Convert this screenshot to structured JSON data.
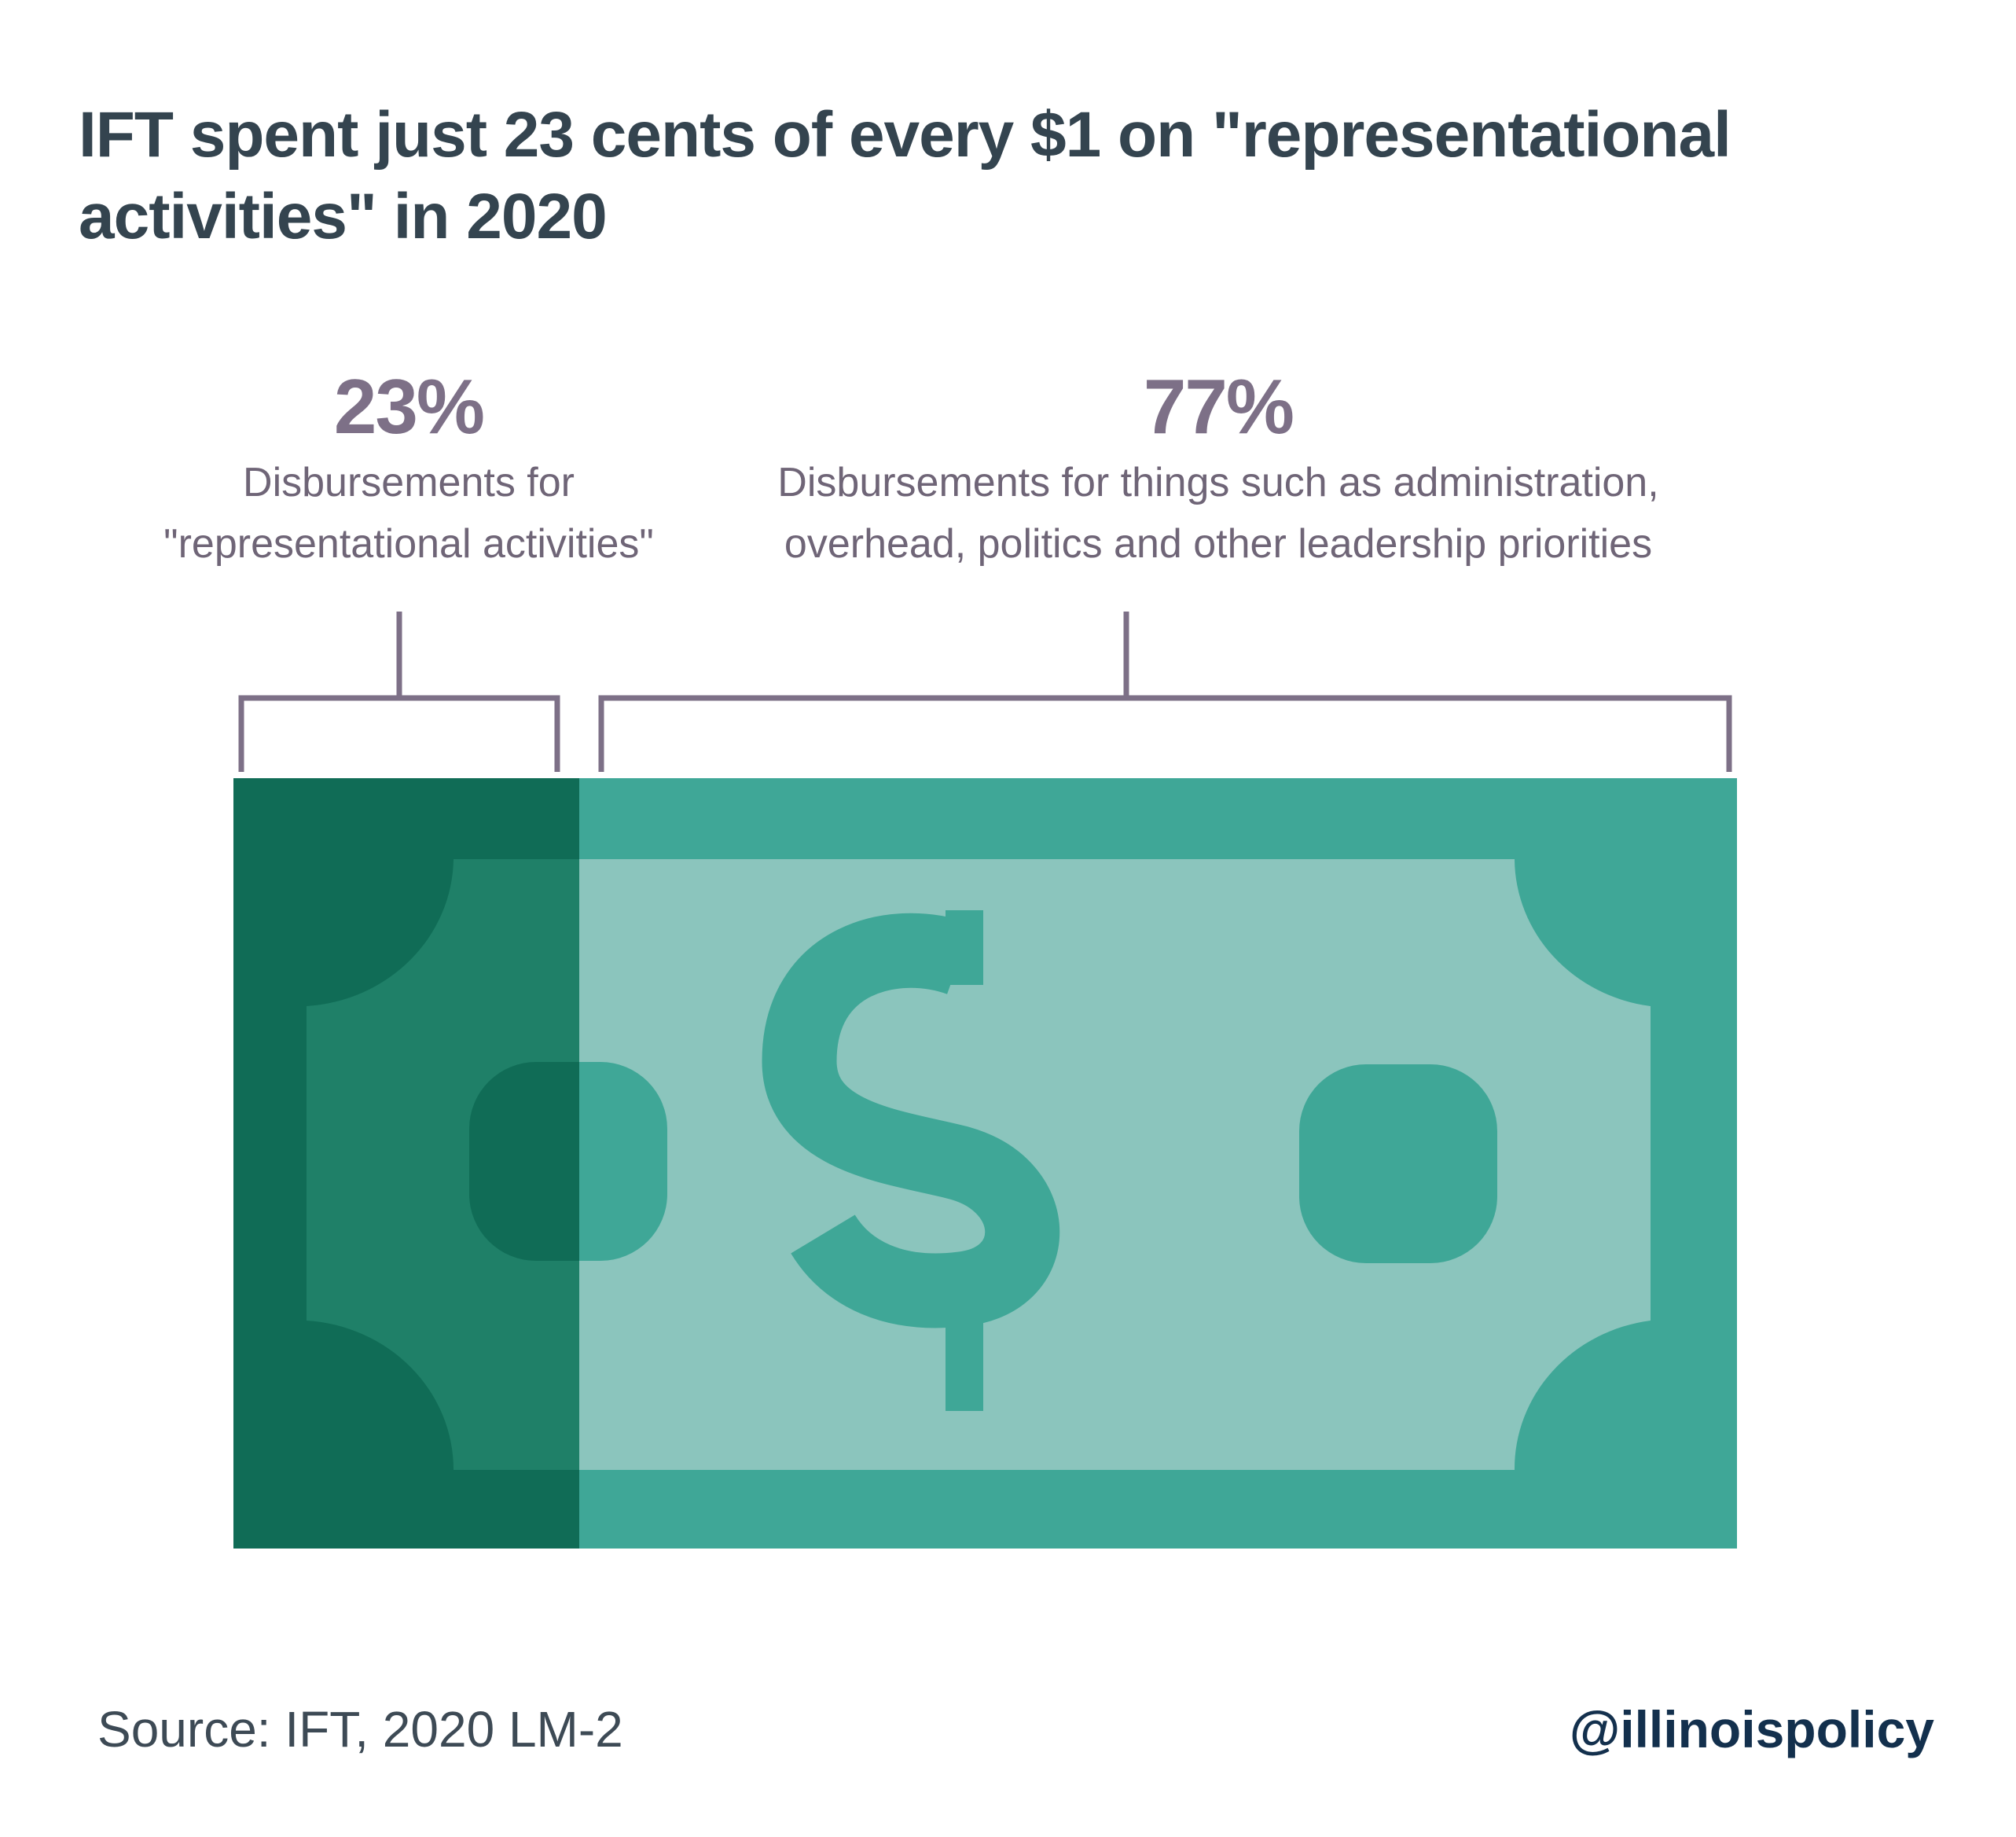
{
  "colors": {
    "title": "#34444f",
    "label": "#7d7087",
    "bracket": "#7d7087",
    "bill_primary": "#3fa797",
    "bill_primary_light": "#8bc5bd",
    "bill_highlight": "#106c56",
    "bill_highlight_light": "#1f8068",
    "brand": "#13304d"
  },
  "chart_data": {
    "type": "bar",
    "title": "IFT spent just  23 cents of every $1 on \"representational activities\" in 2020",
    "unit": "percent of every $1",
    "total": 100,
    "categories": [
      "Disbursements for \"representational activities\"",
      "Disbursements for things such as administration, overhead, politics and other leadership priorities"
    ],
    "values": [
      23,
      77
    ],
    "value_labels": [
      "23%",
      "77%"
    ],
    "label_lines": [
      [
        "Disbursements for",
        "\"representational activities\""
      ],
      [
        "Disbursements for things such as administration,",
        "overhead, politics and other leadership priorities"
      ]
    ],
    "legend": "none",
    "grid": false
  },
  "icon": "dollar-bill-icon",
  "footer": {
    "source": "Source: IFT, 2020 LM-2",
    "brand": "@illinoispolicy"
  }
}
